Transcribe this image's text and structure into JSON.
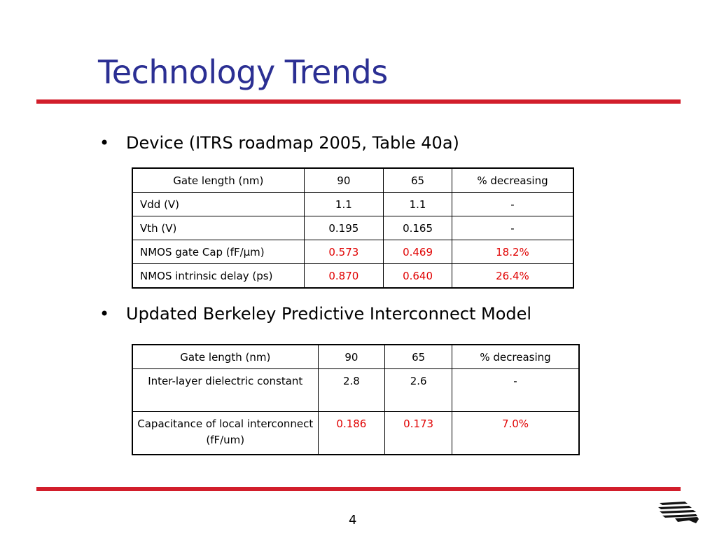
{
  "slide": {
    "title": "Technology Trends",
    "page_number": "4"
  },
  "bullets": [
    {
      "marker": "•",
      "text": "Device (ITRS roadmap 2005, Table 40a)"
    },
    {
      "marker": "•",
      "text": "Updated Berkeley Predictive Interconnect Model"
    }
  ],
  "colors": {
    "title": "#2b2f93",
    "rule": "#d21e2b",
    "highlight": "#e00000"
  },
  "table1": {
    "header": [
      "Gate length (nm)",
      "90",
      "65",
      "% decreasing"
    ],
    "rows": [
      [
        "Vdd (V)",
        "1.1",
        "1.1",
        "-"
      ],
      [
        "Vth (V)",
        "0.195",
        "0.165",
        "-"
      ],
      [
        "NMOS gate Cap (fF/μm)",
        "0.573",
        "0.469",
        "18.2%"
      ],
      [
        "NMOS intrinsic delay (ps)",
        "0.870",
        "0.640",
        "26.4%"
      ]
    ]
  },
  "table2": {
    "header": [
      "Gate length (nm)",
      "90",
      "65",
      "% decreasing"
    ],
    "rows": [
      [
        "Inter-layer dielectric constant",
        "2.8",
        "2.6",
        "-"
      ],
      [
        "Capacitance of local interconnect (fF/um)",
        "0.186",
        "0.173",
        "7.0%"
      ]
    ]
  },
  "logo": {
    "icon": "berkeley-stripes-logo-icon"
  }
}
